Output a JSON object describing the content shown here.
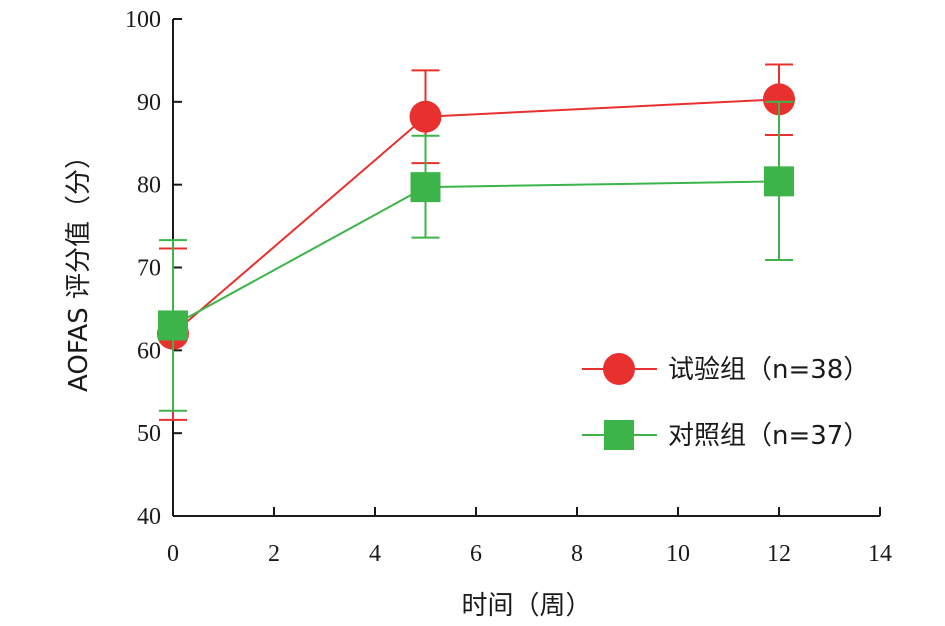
{
  "chart_data": {
    "type": "line",
    "xlabel": "时间（周）",
    "ylabel": "AOFAS 评分值（分）",
    "xlim": [
      0,
      14
    ],
    "ylim": [
      40,
      100
    ],
    "xticks": [
      0,
      2,
      4,
      6,
      8,
      10,
      12,
      14
    ],
    "yticks": [
      40,
      50,
      60,
      70,
      80,
      90,
      100
    ],
    "grid": false,
    "legend_position": "bottom-right",
    "series": [
      {
        "name": "试验组（n=38）",
        "color": "#e8312f",
        "marker": "circle",
        "x": [
          0,
          5,
          12
        ],
        "y": [
          62.0,
          88.2,
          90.3
        ],
        "err_low": [
          51.6,
          82.6,
          86.0
        ],
        "err_high": [
          72.3,
          93.8,
          94.5
        ]
      },
      {
        "name": "对照组（n=37）",
        "color": "#3cb44a",
        "marker": "square",
        "x": [
          0,
          5,
          12
        ],
        "y": [
          63.0,
          79.7,
          80.4
        ],
        "err_low": [
          52.7,
          73.6,
          70.9
        ],
        "err_high": [
          73.3,
          85.9,
          90.0
        ]
      }
    ]
  }
}
